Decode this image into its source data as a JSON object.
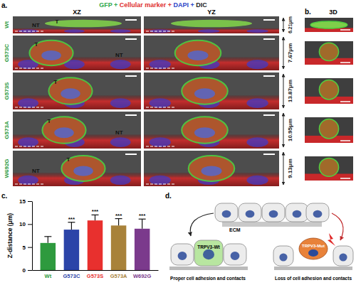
{
  "chart_data": {
    "type": "bar",
    "panel_label": "c.",
    "categories": [
      "Wt",
      "G573C",
      "G573S",
      "G573A",
      "W692G"
    ],
    "values": [
      5.9,
      8.8,
      10.8,
      9.7,
      9.0
    ],
    "errors": [
      1.4,
      1.6,
      1.2,
      1.5,
      2.1
    ],
    "colors": [
      "#2e9a3e",
      "#2b44a8",
      "#e8302e",
      "#a8823a",
      "#7b3a8c"
    ],
    "annotations": [
      null,
      "***",
      "***",
      "***",
      "***"
    ],
    "y_label": "Z-distance (μm)",
    "ylim": [
      0,
      15
    ],
    "yticks": [
      0,
      5,
      10,
      15
    ]
  },
  "figure": {
    "panel_a": {
      "label": "a.",
      "legend": [
        {
          "text": "GFP",
          "color": "#2ea84a"
        },
        {
          "text": " + ",
          "color": "#2ea84a"
        },
        {
          "text": "Cellular marker",
          "color": "#e0302e"
        },
        {
          "text": " + ",
          "color": "#e0302e"
        },
        {
          "text": "DAPI",
          "color": "#2b44c8"
        },
        {
          "text": " + ",
          "color": "#2b44c8"
        },
        {
          "text": "DIC",
          "color": "#222222"
        }
      ],
      "columns": [
        "XZ",
        "YZ"
      ],
      "rows": [
        {
          "name": "Wt",
          "z": "6.21μm",
          "labels": [
            "NT",
            "T"
          ]
        },
        {
          "name": "G573C",
          "z": "7.67μm",
          "labels": [
            "T",
            "NT"
          ]
        },
        {
          "name": "G573S",
          "z": "13.87μm",
          "labels": [
            "T"
          ]
        },
        {
          "name": "G573A",
          "z": "10.95μm",
          "labels": [
            "T",
            "NT"
          ]
        },
        {
          "name": "W692G",
          "z": "9.13μm",
          "labels": [
            "T",
            "NT"
          ]
        }
      ]
    },
    "panel_b": {
      "label": "b.",
      "column": "3D"
    },
    "panel_d": {
      "label": "d.",
      "ecm": "ECM",
      "wt": "TRPV3-Wt",
      "mut": "TRPV3-Mut",
      "wt_caption": "Proper cell adhesion and contacts",
      "mut_caption": "Loss of cell adhesion and contacts"
    }
  }
}
